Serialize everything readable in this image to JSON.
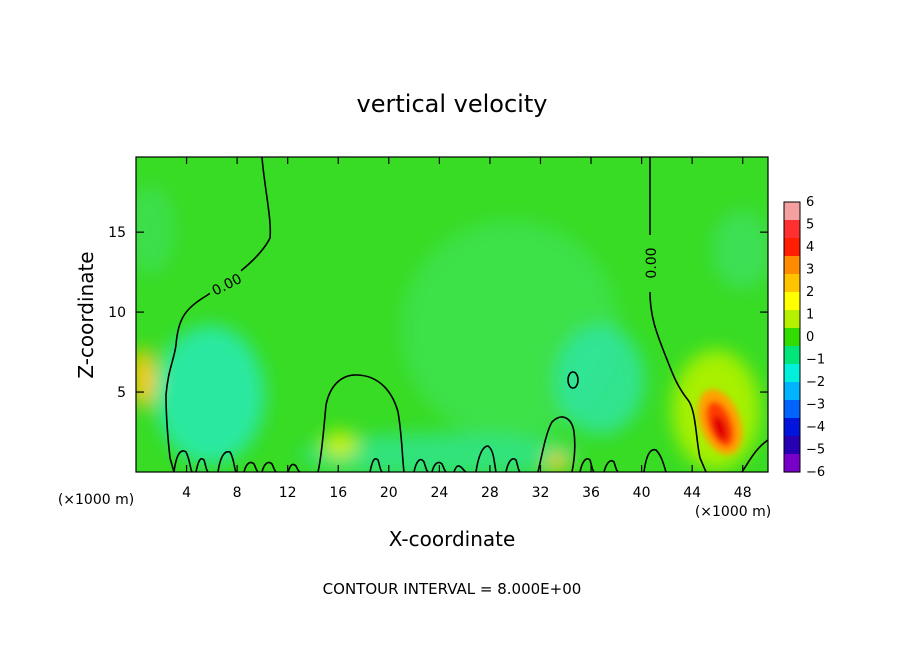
{
  "chart_data": {
    "type": "heatmap",
    "title": "vertical velocity",
    "xlabel": "X-coordinate",
    "ylabel": "Z-coordinate",
    "x_unit": "(×1000 m)",
    "y_unit": "(×1000 m)",
    "x_ticks": [
      4,
      8,
      12,
      16,
      20,
      24,
      28,
      32,
      36,
      40,
      44,
      48
    ],
    "y_ticks": [
      5,
      10,
      15
    ],
    "xlim": [
      0,
      50
    ],
    "ylim": [
      0,
      19.7
    ],
    "colorbar": {
      "ticks": [
        6,
        5,
        4,
        3,
        2,
        1,
        0,
        -1,
        -2,
        -3,
        -4,
        -5,
        -6
      ],
      "colors": [
        "#f4a0a0",
        "#ff3030",
        "#ff1e00",
        "#ff8c00",
        "#ffc400",
        "#ffff00",
        "#b4f000",
        "#32dc00",
        "#00e678",
        "#00f0dc",
        "#00b4ff",
        "#0064ff",
        "#0014dc",
        "#2800b4",
        "#7800c8"
      ]
    },
    "contour_label": "0.00",
    "contour_interval": "CONTOUR INTERVAL = 8.000E+00",
    "features": [
      {
        "name": "updraft-core",
        "x": 46,
        "z": 3,
        "value": 4.5
      },
      {
        "name": "updraft-left-edge",
        "x": 0.5,
        "z": 6,
        "value": 2.5
      },
      {
        "name": "downdraft-region",
        "x": 6,
        "z": 4.5,
        "value": -1.5
      },
      {
        "name": "downdraft-region",
        "x": 39.5,
        "z": 6,
        "value": -1.2
      }
    ]
  }
}
